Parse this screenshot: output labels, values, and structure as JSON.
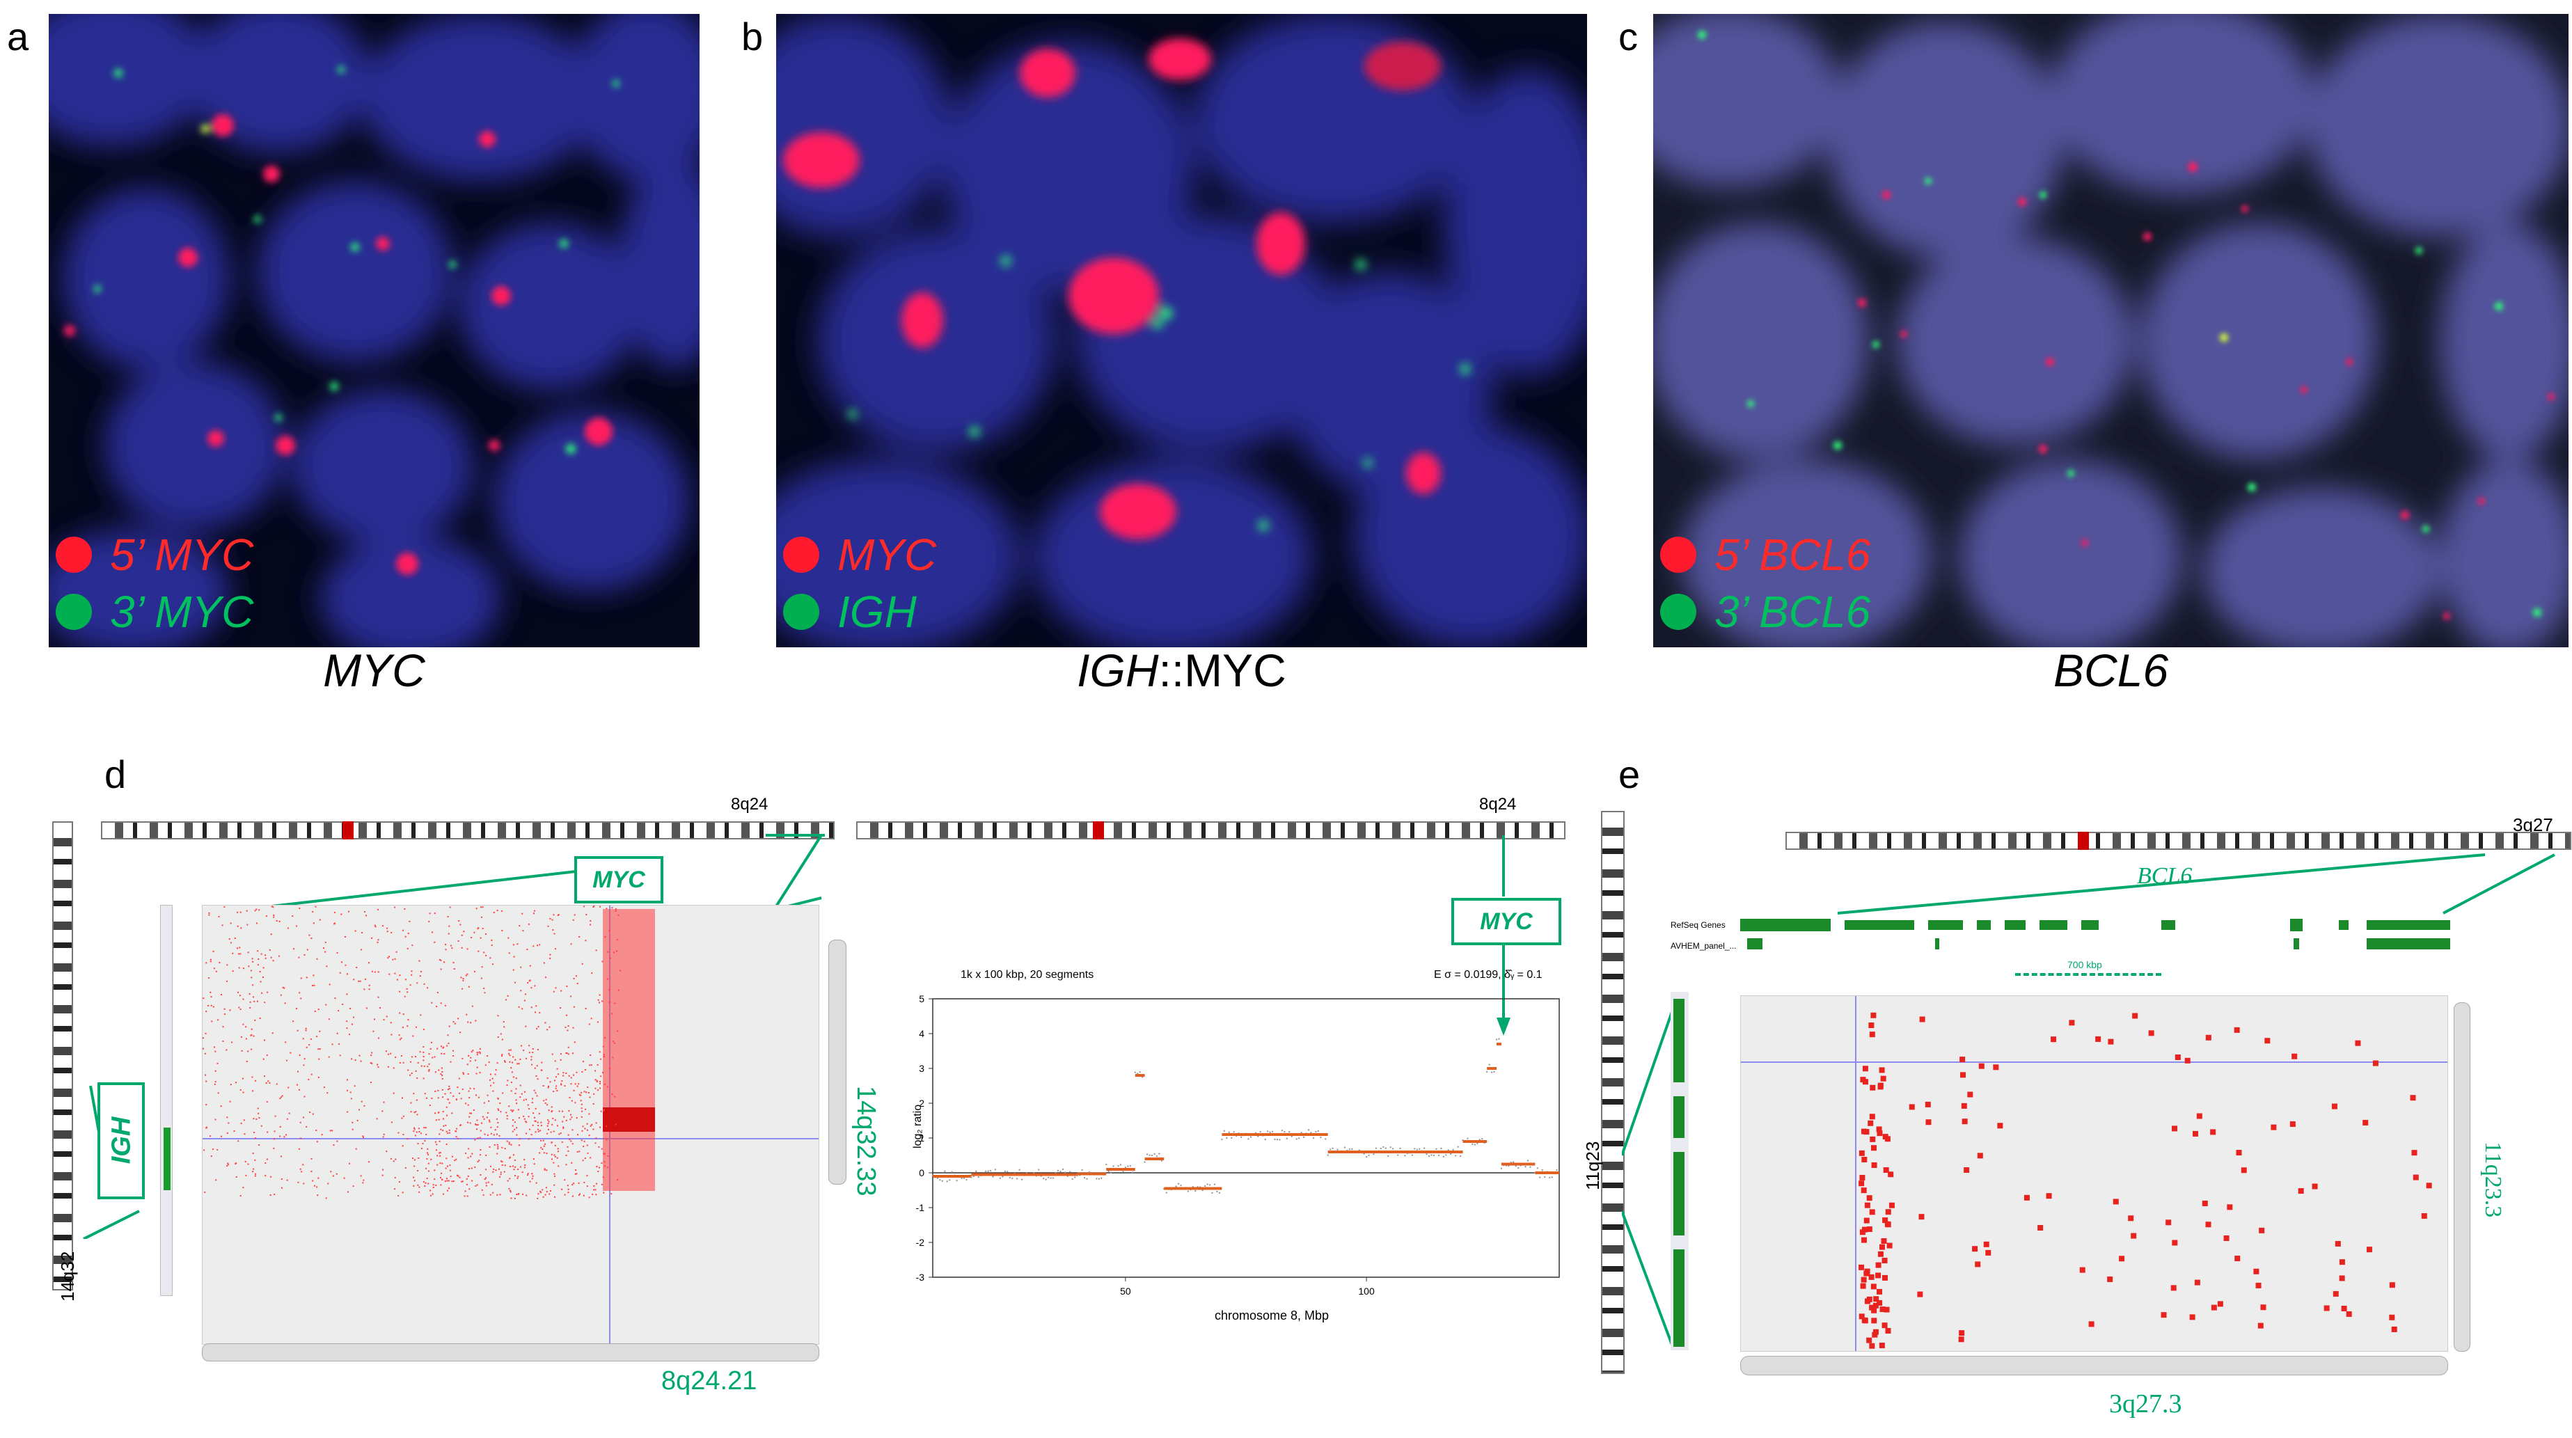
{
  "panels": {
    "a": {
      "label": "a",
      "legend_red": "5’ MYC",
      "legend_green": "3’ MYC",
      "caption": "MYC"
    },
    "b": {
      "label": "b",
      "legend_red": "MYC",
      "legend_green": "IGH",
      "caption_part1": "IGH",
      "caption_part2": "::MYC"
    },
    "c": {
      "label": "c",
      "legend_red": "5’ BCL6",
      "legend_green": "3’ BCL6",
      "caption": "BCL6"
    },
    "d": {
      "label": "d",
      "band_top_left": "8q24",
      "band_top_right": "8q24",
      "callout_myc_left": "MYC",
      "callout_myc_right": "MYC",
      "callout_igh": "IGH",
      "right_axis_label": "14q32.33",
      "bottom_axis_label": "8q24.21",
      "left_band_label": "14q32",
      "cnv": {
        "title": "1k x 100 kbp, 20 segments",
        "stats": "E σ = 0.0199, δ̂ᵧ = 0.1",
        "ylabel": "log₂ ratio",
        "xlabel": "chromosome 8, Mbp",
        "yticks": [
          "5",
          "4",
          "3",
          "2",
          "1",
          "0",
          "-1",
          "-2",
          "-3"
        ],
        "xticks": [
          "50",
          "100"
        ]
      }
    },
    "e": {
      "label": "e",
      "band_top": "3q27",
      "gene": "BCL6",
      "track1": "RefSeq Genes",
      "track2": "AVHEM_panel_...",
      "span": "700 kbp",
      "left_band": "11q23",
      "right_axis_label": "11q23.3",
      "bottom_axis_label": "3q27.3"
    }
  },
  "colors": {
    "red": "#ff1a2e",
    "green": "#00b050",
    "accent_green": "#00a86b",
    "nucleus": "#2a2e9a"
  }
}
